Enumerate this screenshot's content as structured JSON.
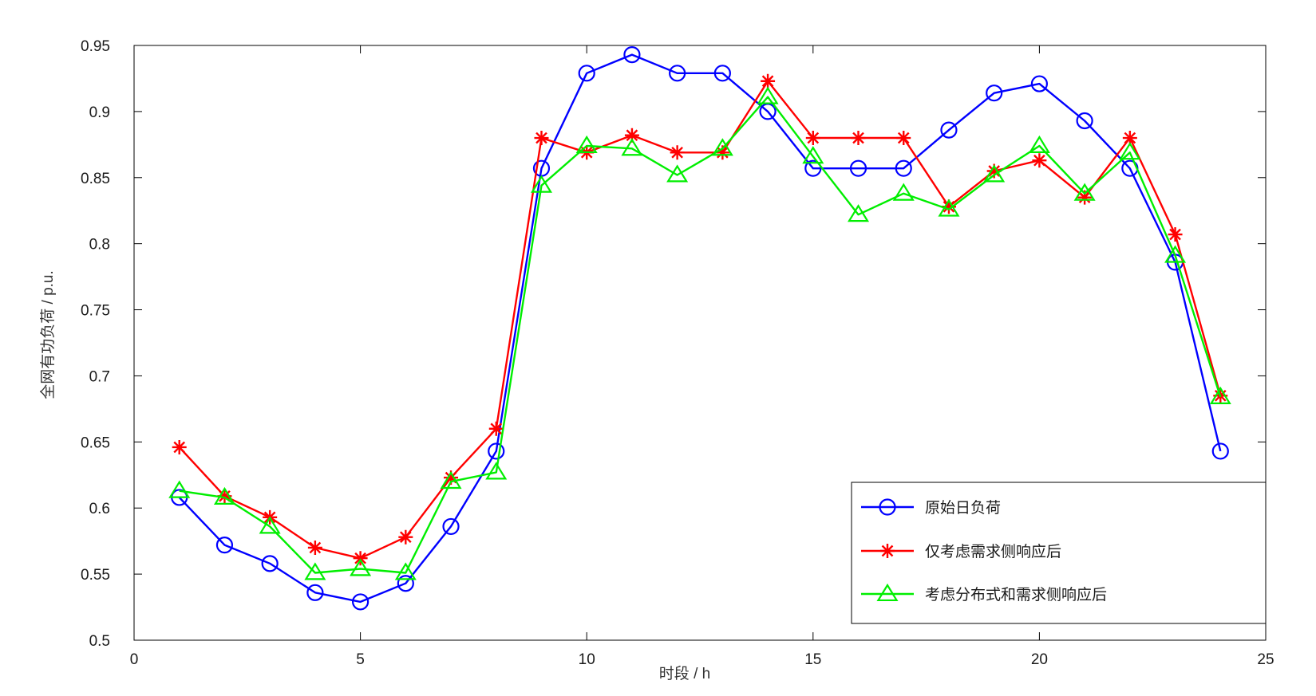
{
  "chart_data": {
    "type": "line",
    "title": "",
    "xlabel": "时段 / h",
    "ylabel": "全网有功负荷 / p.u.",
    "xlim": [
      0,
      25
    ],
    "ylim": [
      0.5,
      0.95
    ],
    "xticks": [
      0,
      5,
      10,
      15,
      20,
      25
    ],
    "yticks": [
      0.5,
      0.55,
      0.6,
      0.65,
      0.7,
      0.75,
      0.8,
      0.85,
      0.9,
      0.95
    ],
    "grid": false,
    "legend_position": "bottom-right",
    "x": [
      1,
      2,
      3,
      4,
      5,
      6,
      7,
      8,
      9,
      10,
      11,
      12,
      13,
      14,
      15,
      16,
      17,
      18,
      19,
      20,
      21,
      22,
      23,
      24
    ],
    "series": [
      {
        "name": "原始日负荷",
        "color": "#0000ff",
        "marker": "circle",
        "values": [
          0.608,
          0.572,
          0.558,
          0.536,
          0.529,
          0.543,
          0.586,
          0.643,
          0.857,
          0.929,
          0.943,
          0.929,
          0.929,
          0.9,
          0.857,
          0.857,
          0.857,
          0.886,
          0.914,
          0.921,
          0.893,
          0.857,
          0.786,
          0.643
        ]
      },
      {
        "name": "仅考虑需求侧响应后",
        "color": "#ff0000",
        "marker": "asterisk",
        "values": [
          0.646,
          0.609,
          0.593,
          0.57,
          0.562,
          0.578,
          0.623,
          0.66,
          0.88,
          0.869,
          0.882,
          0.869,
          0.869,
          0.923,
          0.88,
          0.88,
          0.88,
          0.828,
          0.855,
          0.863,
          0.835,
          0.88,
          0.807,
          0.685
        ]
      },
      {
        "name": "考虑分布式和需求侧响应后",
        "color": "#00ee00",
        "marker": "triangle",
        "values": [
          0.613,
          0.608,
          0.586,
          0.551,
          0.554,
          0.551,
          0.62,
          0.627,
          0.844,
          0.874,
          0.872,
          0.852,
          0.872,
          0.911,
          0.866,
          0.822,
          0.838,
          0.826,
          0.852,
          0.874,
          0.838,
          0.869,
          0.791,
          0.684
        ]
      }
    ]
  }
}
